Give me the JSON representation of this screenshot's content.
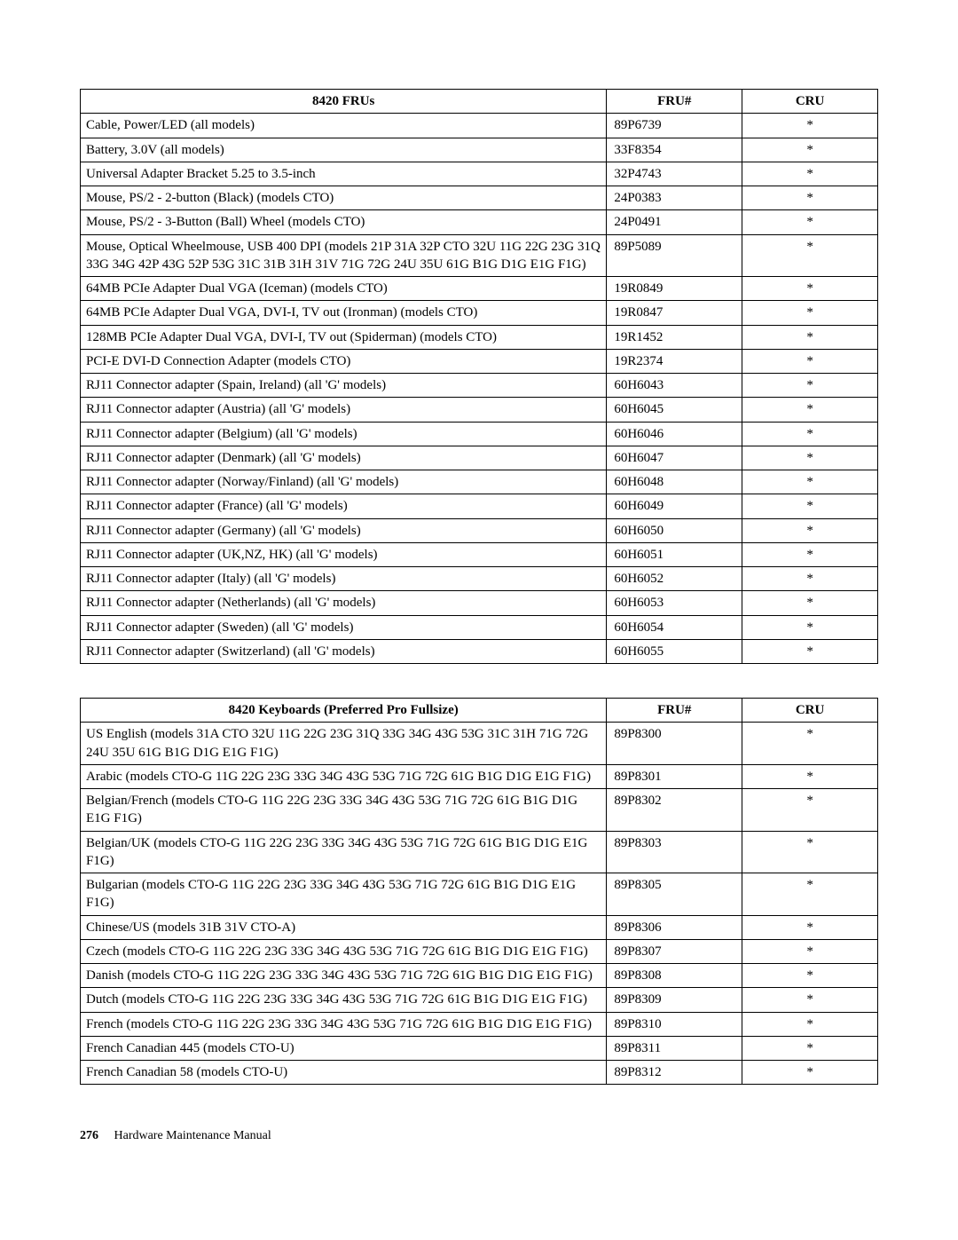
{
  "table1": {
    "headers": {
      "desc": "8420 FRUs",
      "fru": "FRU#",
      "cru": "CRU"
    },
    "rows": [
      {
        "desc": "Cable, Power/LED (all models)",
        "fru": "89P6739",
        "cru": "*"
      },
      {
        "desc": "Battery, 3.0V (all models)",
        "fru": "33F8354",
        "cru": "*"
      },
      {
        "desc": "Universal Adapter Bracket 5.25 to 3.5-inch",
        "fru": "32P4743",
        "cru": "*"
      },
      {
        "desc": "Mouse, PS/2 - 2-button (Black) (models CTO)",
        "fru": "24P0383",
        "cru": "*"
      },
      {
        "desc": "Mouse, PS/2 - 3-Button (Ball) Wheel (models CTO)",
        "fru": "24P0491",
        "cru": "*"
      },
      {
        "desc": "Mouse, Optical Wheelmouse, USB 400 DPI (models 21P 31A 32P CTO 32U 11G 22G 23G 31Q 33G 34G 42P 43G 52P 53G 31C 31B 31H 31V 71G 72G 24U 35U 61G B1G D1G E1G F1G)",
        "fru": "89P5089",
        "cru": "*"
      },
      {
        "desc": "64MB PCIe Adapter Dual VGA (Iceman) (models CTO)",
        "fru": "19R0849",
        "cru": "*"
      },
      {
        "desc": "64MB PCIe Adapter Dual VGA, DVI-I, TV out (Ironman) (models CTO)",
        "fru": "19R0847",
        "cru": "*"
      },
      {
        "desc": "128MB PCIe Adapter Dual VGA, DVI-I, TV out (Spiderman) (models CTO)",
        "fru": "19R1452",
        "cru": "*"
      },
      {
        "desc": "PCI-E DVI-D Connection Adapter (models CTO)",
        "fru": "19R2374",
        "cru": "*"
      },
      {
        "desc": "RJ11 Connector adapter (Spain, Ireland) (all 'G' models)",
        "fru": "60H6043",
        "cru": "*"
      },
      {
        "desc": "RJ11 Connector adapter (Austria) (all 'G' models)",
        "fru": "60H6045",
        "cru": "*"
      },
      {
        "desc": "RJ11 Connector adapter (Belgium) (all 'G' models)",
        "fru": "60H6046",
        "cru": "*"
      },
      {
        "desc": "RJ11 Connector adapter (Denmark) (all 'G' models)",
        "fru": "60H6047",
        "cru": "*"
      },
      {
        "desc": "RJ11 Connector adapter (Norway/Finland) (all 'G' models)",
        "fru": "60H6048",
        "cru": "*"
      },
      {
        "desc": "RJ11 Connector adapter (France) (all 'G' models)",
        "fru": "60H6049",
        "cru": "*"
      },
      {
        "desc": "RJ11 Connector adapter (Germany) (all 'G' models)",
        "fru": "60H6050",
        "cru": "*"
      },
      {
        "desc": "RJ11 Connector adapter (UK,NZ, HK) (all 'G' models)",
        "fru": "60H6051",
        "cru": "*"
      },
      {
        "desc": "RJ11 Connector adapter (Italy) (all 'G' models)",
        "fru": "60H6052",
        "cru": "*"
      },
      {
        "desc": "RJ11 Connector adapter (Netherlands) (all 'G' models)",
        "fru": "60H6053",
        "cru": "*"
      },
      {
        "desc": "RJ11 Connector adapter (Sweden) (all 'G' models)",
        "fru": "60H6054",
        "cru": "*"
      },
      {
        "desc": "RJ11 Connector adapter (Switzerland) (all 'G' models)",
        "fru": "60H6055",
        "cru": "*"
      }
    ]
  },
  "table2": {
    "headers": {
      "desc": "8420 Keyboards (Preferred Pro Fullsize)",
      "fru": "FRU#",
      "cru": "CRU"
    },
    "rows": [
      {
        "desc": "US English (models 31A CTO 32U 11G 22G 23G 31Q 33G 34G 43G 53G 31C 31H 71G 72G 24U 35U 61G B1G D1G E1G F1G)",
        "fru": "89P8300",
        "cru": "*"
      },
      {
        "desc": "Arabic (models CTO-G 11G 22G 23G 33G 34G 43G 53G 71G 72G 61G B1G D1G E1G F1G)",
        "fru": "89P8301",
        "cru": "*"
      },
      {
        "desc": "Belgian/French (models CTO-G 11G 22G 23G 33G 34G 43G 53G 71G 72G 61G B1G D1G E1G F1G)",
        "fru": "89P8302",
        "cru": "*"
      },
      {
        "desc": "Belgian/UK (models CTO-G 11G 22G 23G 33G 34G 43G 53G 71G 72G 61G B1G D1G E1G F1G)",
        "fru": "89P8303",
        "cru": "*"
      },
      {
        "desc": "Bulgarian (models CTO-G 11G 22G 23G 33G 34G 43G 53G 71G 72G 61G B1G D1G E1G F1G)",
        "fru": "89P8305",
        "cru": "*"
      },
      {
        "desc": "Chinese/US (models 31B 31V CTO-A)",
        "fru": "89P8306",
        "cru": "*"
      },
      {
        "desc": "Czech (models CTO-G 11G 22G 23G 33G 34G 43G 53G 71G 72G 61G B1G D1G E1G F1G)",
        "fru": "89P8307",
        "cru": "*"
      },
      {
        "desc": "Danish (models CTO-G 11G 22G 23G 33G 34G 43G 53G 71G 72G 61G B1G D1G E1G F1G)",
        "fru": "89P8308",
        "cru": "*"
      },
      {
        "desc": "Dutch (models CTO-G 11G 22G 23G 33G 34G 43G 53G 71G 72G 61G B1G D1G E1G F1G)",
        "fru": "89P8309",
        "cru": "*"
      },
      {
        "desc": "French (models CTO-G 11G 22G 23G 33G 34G 43G 53G 71G 72G 61G B1G D1G E1G F1G)",
        "fru": "89P8310",
        "cru": "*"
      },
      {
        "desc": "French Canadian 445 (models CTO-U)",
        "fru": "89P8311",
        "cru": "*"
      },
      {
        "desc": "French Canadian 58 (models CTO-U)",
        "fru": "89P8312",
        "cru": "*"
      }
    ]
  },
  "footer": {
    "pagenum": "276",
    "book": "Hardware Maintenance Manual"
  }
}
